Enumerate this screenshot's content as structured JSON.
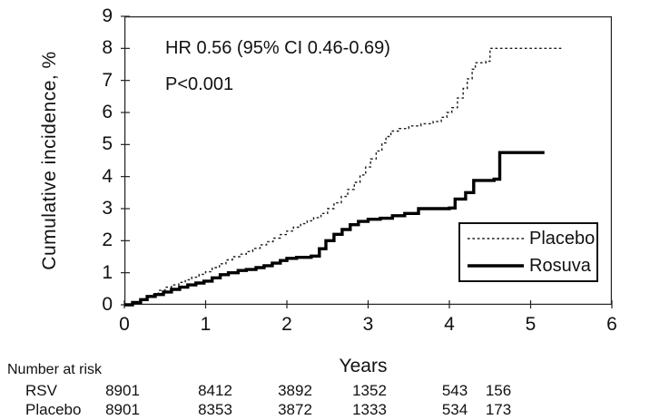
{
  "chart_data": {
    "type": "line",
    "subtype": "kaplan-meier-step",
    "title": "",
    "xlabel": "Years",
    "ylabel": "Cumulative incidence, %",
    "xlim": [
      0,
      6
    ],
    "ylim": [
      0,
      9
    ],
    "x_ticks": [
      0,
      1,
      2,
      3,
      4,
      5,
      6
    ],
    "y_ticks": [
      0,
      1,
      2,
      3,
      4,
      5,
      6,
      7,
      8,
      9
    ],
    "grid": "off",
    "annotations": {
      "hr": "HR 0.56 (95% CI 0.46-0.69)",
      "p": "P<0.001"
    },
    "legend": {
      "position": "inside-lower-right",
      "entries": [
        {
          "label": "Placebo",
          "style": "dotted"
        },
        {
          "label": "Rosuva",
          "style": "solid"
        }
      ]
    },
    "series": [
      {
        "name": "Placebo",
        "line": "dotted",
        "stroke_width": 1.4,
        "color": "#1a1a1a",
        "points": [
          [
            0,
            0
          ],
          [
            0.08,
            0.06
          ],
          [
            0.17,
            0.14
          ],
          [
            0.25,
            0.24
          ],
          [
            0.33,
            0.33
          ],
          [
            0.42,
            0.45
          ],
          [
            0.5,
            0.55
          ],
          [
            0.58,
            0.62
          ],
          [
            0.67,
            0.7
          ],
          [
            0.75,
            0.78
          ],
          [
            0.83,
            0.86
          ],
          [
            0.92,
            0.95
          ],
          [
            1.0,
            1.03
          ],
          [
            1.08,
            1.16
          ],
          [
            1.17,
            1.28
          ],
          [
            1.25,
            1.4
          ],
          [
            1.33,
            1.5
          ],
          [
            1.42,
            1.58
          ],
          [
            1.5,
            1.66
          ],
          [
            1.58,
            1.76
          ],
          [
            1.67,
            1.87
          ],
          [
            1.75,
            1.97
          ],
          [
            1.83,
            2.08
          ],
          [
            1.92,
            2.19
          ],
          [
            2.0,
            2.3
          ],
          [
            2.08,
            2.42
          ],
          [
            2.17,
            2.53
          ],
          [
            2.25,
            2.62
          ],
          [
            2.33,
            2.72
          ],
          [
            2.42,
            2.85
          ],
          [
            2.5,
            3.0
          ],
          [
            2.58,
            3.18
          ],
          [
            2.67,
            3.38
          ],
          [
            2.75,
            3.6
          ],
          [
            2.83,
            3.82
          ],
          [
            2.9,
            4.05
          ],
          [
            2.97,
            4.3
          ],
          [
            3.03,
            4.55
          ],
          [
            3.1,
            4.8
          ],
          [
            3.17,
            5.05
          ],
          [
            3.22,
            5.25
          ],
          [
            3.28,
            5.42
          ],
          [
            3.38,
            5.5
          ],
          [
            3.5,
            5.58
          ],
          [
            3.65,
            5.65
          ],
          [
            3.8,
            5.72
          ],
          [
            3.9,
            5.85
          ],
          [
            3.97,
            6.0
          ],
          [
            4.03,
            6.15
          ],
          [
            4.1,
            6.45
          ],
          [
            4.17,
            6.75
          ],
          [
            4.22,
            7.05
          ],
          [
            4.28,
            7.35
          ],
          [
            4.32,
            7.55
          ],
          [
            4.45,
            7.6
          ],
          [
            4.5,
            8.0
          ],
          [
            5.4,
            8.0
          ]
        ]
      },
      {
        "name": "Rosuva",
        "line": "solid",
        "stroke_width": 3.4,
        "color": "#000000",
        "points": [
          [
            0,
            0
          ],
          [
            0.1,
            0.07
          ],
          [
            0.2,
            0.16
          ],
          [
            0.28,
            0.26
          ],
          [
            0.38,
            0.32
          ],
          [
            0.48,
            0.4
          ],
          [
            0.58,
            0.48
          ],
          [
            0.68,
            0.55
          ],
          [
            0.78,
            0.62
          ],
          [
            0.88,
            0.68
          ],
          [
            0.98,
            0.74
          ],
          [
            1.08,
            0.84
          ],
          [
            1.18,
            0.94
          ],
          [
            1.28,
            1.0
          ],
          [
            1.4,
            1.07
          ],
          [
            1.5,
            1.1
          ],
          [
            1.62,
            1.16
          ],
          [
            1.72,
            1.22
          ],
          [
            1.82,
            1.3
          ],
          [
            1.92,
            1.38
          ],
          [
            2.0,
            1.45
          ],
          [
            2.12,
            1.48
          ],
          [
            2.3,
            1.52
          ],
          [
            2.4,
            1.75
          ],
          [
            2.48,
            2.0
          ],
          [
            2.58,
            2.2
          ],
          [
            2.68,
            2.35
          ],
          [
            2.78,
            2.5
          ],
          [
            2.88,
            2.6
          ],
          [
            3.0,
            2.67
          ],
          [
            3.15,
            2.7
          ],
          [
            3.3,
            2.78
          ],
          [
            3.45,
            2.85
          ],
          [
            3.62,
            3.0
          ],
          [
            4.0,
            3.02
          ],
          [
            4.07,
            3.3
          ],
          [
            4.2,
            3.5
          ],
          [
            4.3,
            3.88
          ],
          [
            4.55,
            3.92
          ],
          [
            4.62,
            4.75
          ],
          [
            5.17,
            4.75
          ]
        ]
      }
    ]
  },
  "risk_table": {
    "title": "Number at risk",
    "rows": [
      {
        "label": "RSV",
        "values": [
          "8901",
          "8412",
          "3892",
          "1352",
          "543",
          "156"
        ]
      },
      {
        "label": "Placebo",
        "values": [
          "8901",
          "8353",
          "3872",
          "1333",
          "534",
          "173"
        ]
      }
    ]
  },
  "colors": {
    "ink": "#111111",
    "axis": "#222222",
    "background": "#ffffff"
  }
}
